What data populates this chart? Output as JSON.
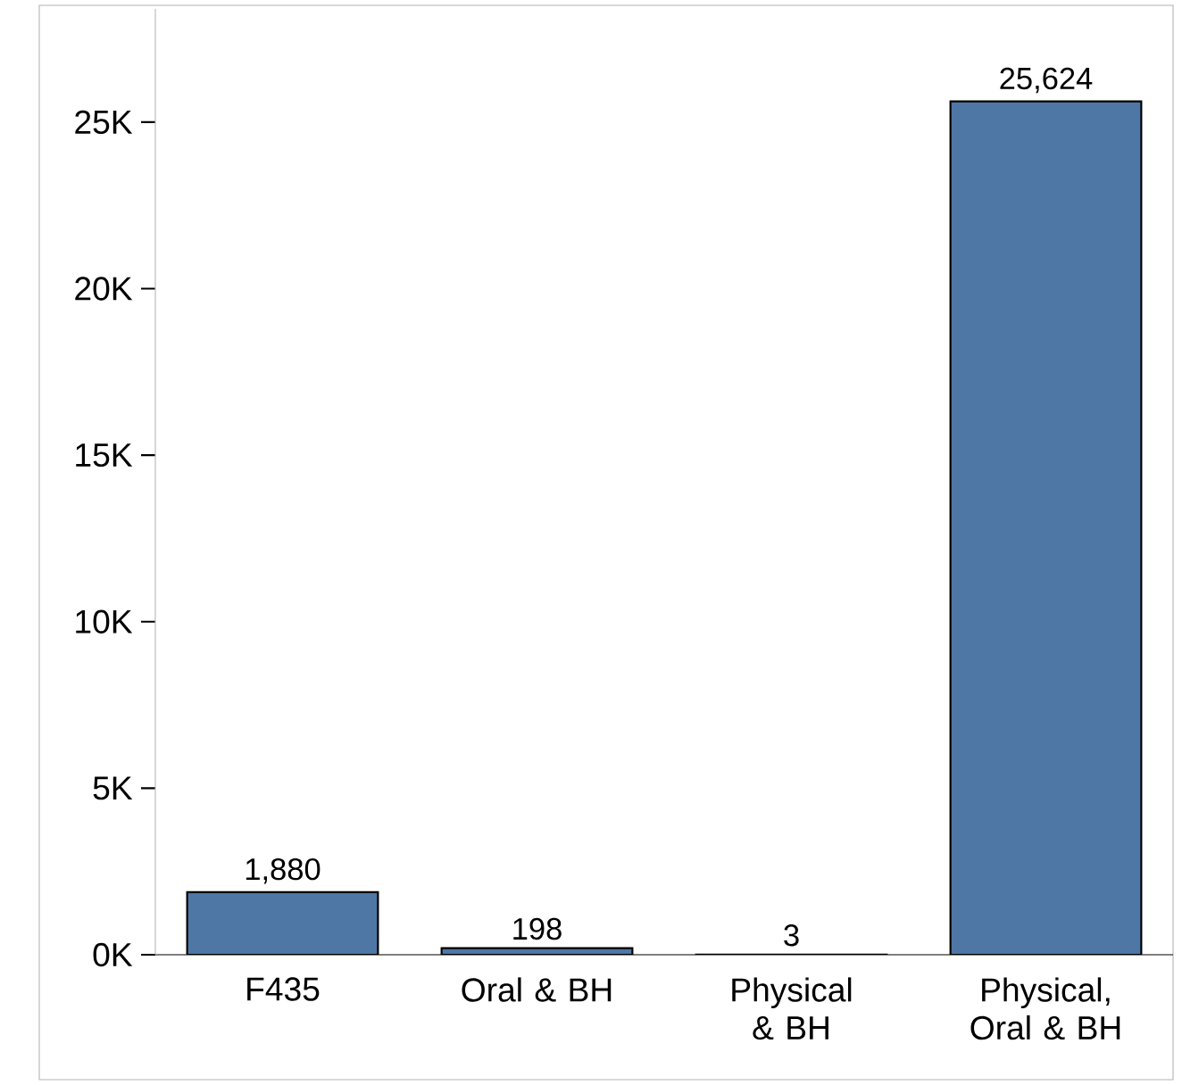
{
  "chart_data": {
    "type": "bar",
    "categories": [
      "F435",
      "Oral & BH",
      "Physical & BH",
      "Physical, Oral & BH"
    ],
    "values": [
      1880,
      198,
      3,
      25624
    ],
    "value_labels": [
      "1,880",
      "198",
      "3",
      "25,624"
    ],
    "color": "#4e77a5",
    "ylim": [
      0,
      28400
    ],
    "yticks": [
      {
        "value": 0,
        "label": "0K"
      },
      {
        "value": 5000,
        "label": "5K"
      },
      {
        "value": 10000,
        "label": "10K"
      },
      {
        "value": 15000,
        "label": "15K"
      },
      {
        "value": 20000,
        "label": "20K"
      },
      {
        "value": 25000,
        "label": "25K"
      }
    ]
  }
}
